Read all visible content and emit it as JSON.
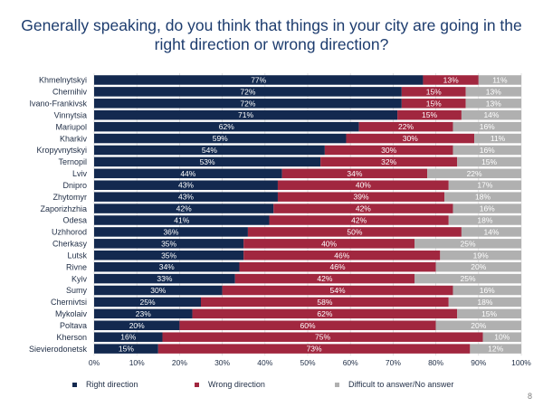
{
  "title": {
    "line1": "Generally speaking, do you think that things in your city are going in the",
    "line2": "right direction or wrong direction?"
  },
  "page_number": "8",
  "colors": {
    "right": "#13294f",
    "wrong": "#a1273f",
    "difficult": "#b0b0b0",
    "title": "#1d3c6e",
    "grid": "#d9d9d9"
  },
  "chart_data": {
    "type": "bar",
    "orientation": "horizontal",
    "stacked": true,
    "categories": [
      "Khmelnytskyi",
      "Chernihiv",
      "Ivano-Frankivsk",
      "Vinnytsia",
      "Mariupol",
      "Kharkiv",
      "Kropyvnytskyi",
      "Ternopil",
      "Lviv",
      "Dnipro",
      "Zhytomyr",
      "Zaporizhzhia",
      "Odesa",
      "Uzhhorod",
      "Cherkasy",
      "Lutsk",
      "Rivne",
      "Kyiv",
      "Sumy",
      "Chernivtsi",
      "Mykolaiv",
      "Poltava",
      "Kherson",
      "Sievierodonetsk"
    ],
    "series": [
      {
        "name": "Right direction",
        "values": [
          77,
          72,
          72,
          71,
          62,
          59,
          54,
          53,
          44,
          43,
          43,
          42,
          41,
          36,
          35,
          35,
          34,
          33,
          30,
          25,
          23,
          20,
          16,
          15
        ]
      },
      {
        "name": "Wrong direction",
        "values": [
          13,
          15,
          15,
          15,
          22,
          30,
          30,
          32,
          34,
          40,
          39,
          42,
          42,
          50,
          40,
          46,
          46,
          42,
          54,
          58,
          62,
          60,
          75,
          73
        ]
      },
      {
        "name": "Difficult to answer/No answer",
        "values": [
          11,
          13,
          13,
          14,
          16,
          11,
          16,
          15,
          22,
          17,
          18,
          16,
          18,
          14,
          25,
          19,
          20,
          25,
          16,
          18,
          15,
          20,
          10,
          12
        ]
      }
    ],
    "x_ticks": [
      "0%",
      "10%",
      "20%",
      "30%",
      "40%",
      "50%",
      "60%",
      "70%",
      "80%",
      "90%",
      "100%"
    ],
    "xlim": [
      0,
      100
    ],
    "value_suffix": "%",
    "grid": true,
    "legend_position": "bottom"
  }
}
